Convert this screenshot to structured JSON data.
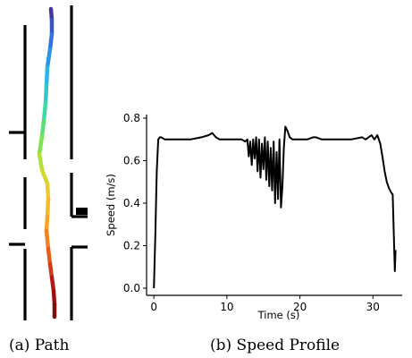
{
  "captions": {
    "left": "(a) Path",
    "right": "(b) Speed Profile"
  },
  "path_colors": [
    "#46369e",
    "#2f6fe0",
    "#27b0ea",
    "#34d7b4",
    "#6fe15b",
    "#c8e02f",
    "#f3c72d",
    "#f99a25",
    "#e4561a",
    "#b51515",
    "#7a0f0f"
  ],
  "chart_data": [
    {
      "type": "line",
      "title": "",
      "xlabel": "Time (s)",
      "ylabel": "Speed (m/s)",
      "xlim": [
        -1,
        34
      ],
      "ylim": [
        0.0,
        0.8
      ],
      "x_ticks": [
        0,
        10,
        20,
        30
      ],
      "y_ticks": [
        0.0,
        0.2,
        0.4,
        0.6,
        0.8
      ],
      "x_tick_labels": [
        "0",
        "10",
        "20",
        "30"
      ],
      "y_tick_labels": [
        "0.0",
        "0.2",
        "0.4",
        "0.6",
        "0.8"
      ],
      "grid": false,
      "series": [
        {
          "color": "#000000",
          "x": [
            0.0,
            0.2,
            0.4,
            0.6,
            0.8,
            1.0,
            1.5,
            3,
            5,
            6.5,
            7.5,
            8.0,
            8.5,
            9,
            10,
            11,
            12,
            12.5,
            12.8,
            13.0,
            13.2,
            13.4,
            13.6,
            13.8,
            14.0,
            14.2,
            14.4,
            14.6,
            14.8,
            15.0,
            15.2,
            15.4,
            15.6,
            15.8,
            16.0,
            16.2,
            16.4,
            16.6,
            16.8,
            17.0,
            17.2,
            17.4,
            17.6,
            17.8,
            18.0,
            18.3,
            18.6,
            19.0,
            19.5,
            20,
            21,
            21.8,
            22.2,
            23,
            25,
            27,
            28.5,
            29.0,
            29.4,
            29.8,
            30.2,
            30.6,
            31.0,
            31.3,
            31.6,
            31.9,
            32.2,
            32.5,
            32.7,
            32.9,
            33.0,
            33.1
          ],
          "y": [
            0.0,
            0.25,
            0.55,
            0.7,
            0.71,
            0.71,
            0.7,
            0.7,
            0.7,
            0.71,
            0.72,
            0.73,
            0.71,
            0.7,
            0.7,
            0.7,
            0.7,
            0.69,
            0.7,
            0.62,
            0.69,
            0.58,
            0.7,
            0.61,
            0.71,
            0.55,
            0.7,
            0.52,
            0.68,
            0.56,
            0.71,
            0.51,
            0.69,
            0.48,
            0.66,
            0.46,
            0.69,
            0.4,
            0.64,
            0.42,
            0.7,
            0.38,
            0.48,
            0.66,
            0.76,
            0.74,
            0.71,
            0.7,
            0.7,
            0.7,
            0.7,
            0.71,
            0.71,
            0.7,
            0.7,
            0.7,
            0.71,
            0.7,
            0.71,
            0.72,
            0.7,
            0.72,
            0.68,
            0.62,
            0.55,
            0.5,
            0.47,
            0.45,
            0.44,
            0.2,
            0.08,
            0.18
          ]
        }
      ]
    }
  ]
}
